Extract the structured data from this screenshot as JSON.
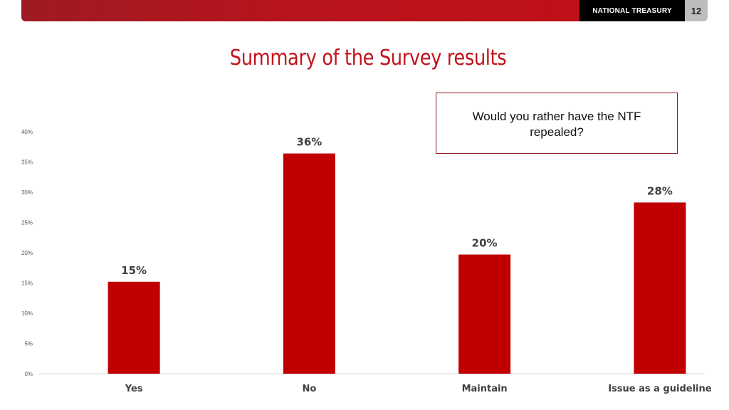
{
  "header": {
    "brand": "NATIONAL TREASURY",
    "page_number": "12",
    "bar_color": "#b8141c"
  },
  "title": "Summary of the Survey results",
  "question": "Would you rather have the NTF repealed?",
  "chart_data": {
    "type": "bar",
    "categories": [
      "Yes",
      "No",
      "Maintain",
      "Issue as a guideline"
    ],
    "values": [
      15,
      36,
      20,
      28
    ],
    "exact_values": [
      15.2,
      36.4,
      19.7,
      28.3
    ],
    "data_labels": [
      "15%",
      "36%",
      "20%",
      "28%"
    ],
    "y_ticks": [
      "0%",
      "5%",
      "10%",
      "15%",
      "20%",
      "25%",
      "30%",
      "35%",
      "40%"
    ],
    "ylim": [
      0,
      40
    ],
    "bar_color": "#c00000",
    "grid": false,
    "legend": "none",
    "title": "",
    "xlabel": "",
    "ylabel": ""
  }
}
